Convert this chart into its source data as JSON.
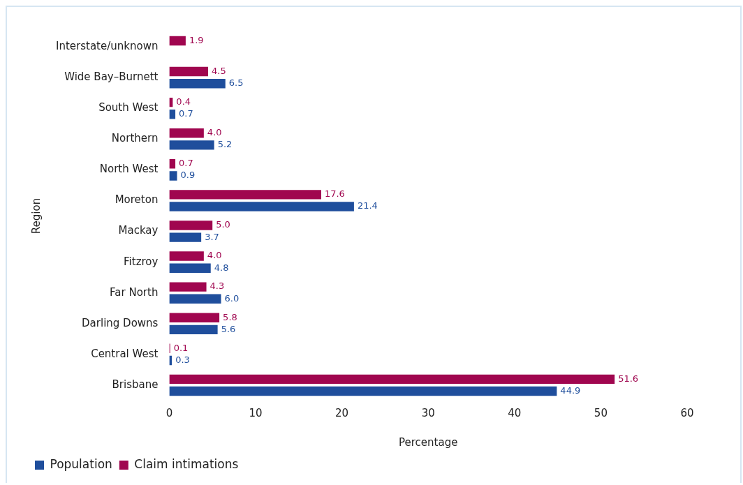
{
  "chart_data": {
    "type": "bar",
    "orientation": "horizontal",
    "xlabel": "Percentage",
    "ylabel": "Region",
    "categories": [
      "Interstate/unknown",
      "Wide Bay–Burnett",
      "South West",
      "Northern",
      "North West",
      "Moreton",
      "Mackay",
      "Fitzroy",
      "Far North",
      "Darling Downs",
      "Central West",
      "Brisbane"
    ],
    "series": [
      {
        "name": "Population",
        "color": "#1f4e9c",
        "values": [
          null,
          6.5,
          0.7,
          5.2,
          0.9,
          21.4,
          3.7,
          4.8,
          6.0,
          5.6,
          0.3,
          44.9
        ],
        "value_labels": [
          null,
          "6.5",
          "0.7",
          "5.2",
          "0.9",
          "21.4",
          "3.7",
          "4.8",
          "6.0",
          "5.6",
          "0.3",
          "44.9"
        ]
      },
      {
        "name": "Claim intimations",
        "color": "#a0064f",
        "values": [
          1.9,
          4.5,
          0.4,
          4.0,
          0.7,
          17.6,
          5.0,
          4.0,
          4.3,
          5.8,
          0.1,
          51.6
        ],
        "value_labels": [
          "1.9",
          "4.5",
          "0.4",
          "4.0",
          "0.7",
          "17.6",
          "5.0",
          "4.0",
          "4.3",
          "5.8",
          "0.1",
          "51.6"
        ]
      }
    ],
    "xlim": [
      0,
      60
    ],
    "xticks": [
      0,
      10,
      20,
      30,
      40,
      50,
      60
    ],
    "grid": false,
    "legend": "bottom left"
  }
}
